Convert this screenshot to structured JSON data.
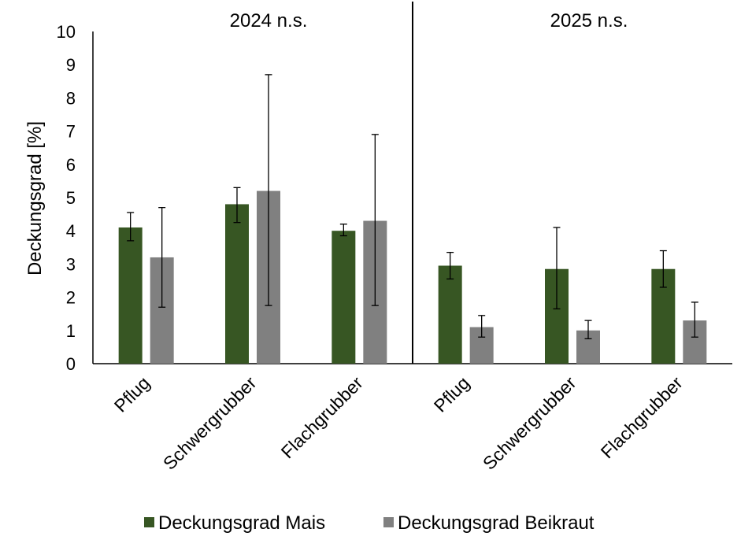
{
  "chart_data": {
    "type": "bar",
    "ylabel": "Deckungsgrad [%]",
    "ylim": [
      0,
      10
    ],
    "yticks": [
      "0",
      "1",
      "2",
      "3",
      "4",
      "5",
      "6",
      "7",
      "8",
      "9",
      "10"
    ],
    "legend_position": "bottom",
    "colors": {
      "mais": "#375623",
      "beikraut": "#808080"
    },
    "series": [
      {
        "name": "Deckungsgrad Mais",
        "key": "mais"
      },
      {
        "name": "Deckungsgrad Beikraut",
        "key": "beikraut"
      }
    ],
    "panels": [
      {
        "title": "2024 n.s.",
        "categories": [
          "Pflug",
          "Schwergrubber",
          "Flachgrubber"
        ],
        "mais": {
          "values": [
            4.1,
            4.8,
            4.0
          ],
          "err_low": [
            3.7,
            4.25,
            3.85
          ],
          "err_high": [
            4.55,
            5.3,
            4.2
          ]
        },
        "beikraut": {
          "values": [
            3.2,
            5.2,
            4.3
          ],
          "err_low": [
            1.7,
            1.75,
            1.75
          ],
          "err_high": [
            4.7,
            8.7,
            6.9
          ]
        }
      },
      {
        "title": "2025 n.s.",
        "categories": [
          "Pflug",
          "Schwergrubber",
          "Flachgrubber"
        ],
        "mais": {
          "values": [
            2.95,
            2.85,
            2.85
          ],
          "err_low": [
            2.55,
            1.65,
            2.3
          ],
          "err_high": [
            3.35,
            4.1,
            3.4
          ]
        },
        "beikraut": {
          "values": [
            1.1,
            1.0,
            1.3
          ],
          "err_low": [
            0.8,
            0.75,
            0.8
          ],
          "err_high": [
            1.45,
            1.3,
            1.85
          ]
        }
      }
    ]
  }
}
